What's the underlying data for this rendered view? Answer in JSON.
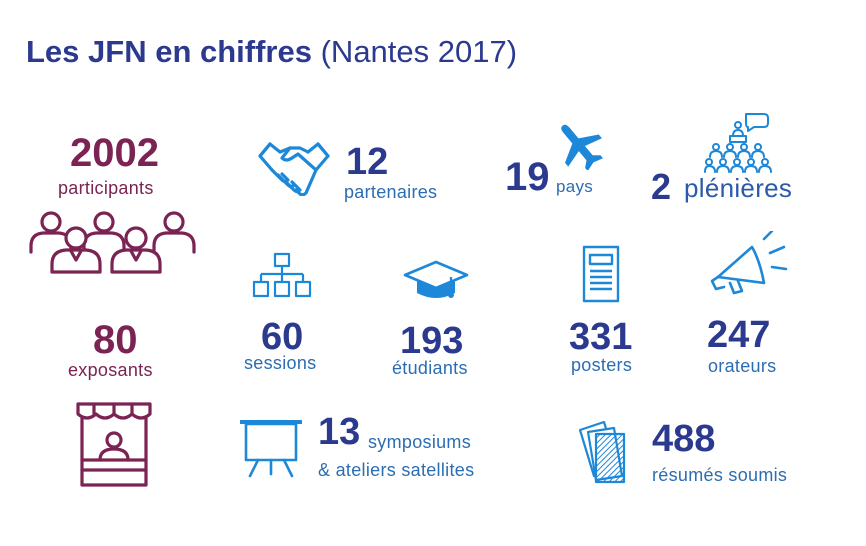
{
  "title": {
    "bold": "Les JFN en chiffres",
    "light": "(Nantes 2017)"
  },
  "colors": {
    "navy": "#2b3a8f",
    "blue": "#1e88d8",
    "maroon": "#7b2352"
  },
  "stats": {
    "participants": {
      "value": "2002",
      "label": "participants",
      "icon": "audience-people-icon"
    },
    "partenaires": {
      "value": "12",
      "label": "partenaires",
      "icon": "handshake-icon"
    },
    "pays": {
      "value": "19",
      "label": "pays",
      "icon": "airplane-icon"
    },
    "plenieres": {
      "value": "2",
      "label": "plénières",
      "icon": "lecture-audience-icon"
    },
    "exposants": {
      "value": "80",
      "label": "exposants",
      "icon": "stand-booth-icon"
    },
    "sessions": {
      "value": "60",
      "label": "sessions",
      "icon": "org-chart-icon"
    },
    "etudiants": {
      "value": "193",
      "label": "étudiants",
      "icon": "graduation-cap-icon"
    },
    "posters": {
      "value": "331",
      "label": "posters",
      "icon": "poster-document-icon"
    },
    "orateurs": {
      "value": "247",
      "label": "orateurs",
      "icon": "megaphone-icon"
    },
    "symposiums": {
      "value": "13",
      "label_line1": "symposiums",
      "label_line2": "& ateliers satellites",
      "icon": "presentation-board-icon"
    },
    "resumes": {
      "value": "488",
      "label": "résumés soumis",
      "icon": "stacked-papers-icon"
    }
  }
}
